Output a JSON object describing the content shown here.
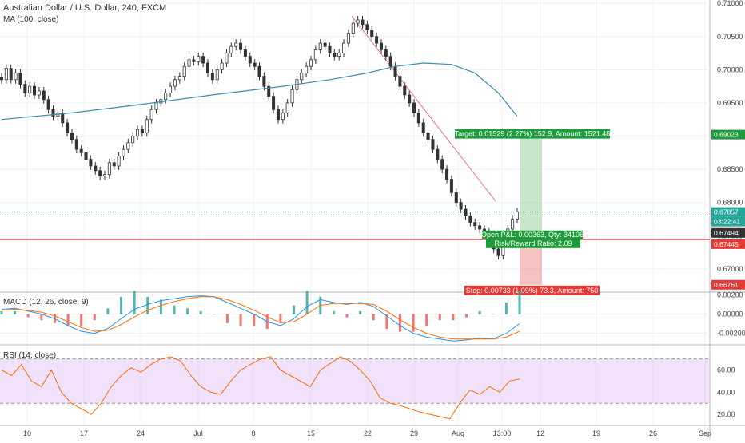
{
  "header": {
    "symbol_title": "Australian Dollar / U.S. Dollar, 240, FXCM",
    "ma_title": "MA (100, close)"
  },
  "indicators": {
    "macd_title": "MACD (12, 26, close, 9)",
    "rsi_title": "RSI (14, close)"
  },
  "colors": {
    "up": "#26a69a",
    "down": "#ef5350",
    "candle_body": "#333333",
    "ma": "#3d8bb0",
    "macd": "#2196f3",
    "signal": "#ff6d00",
    "rsi": "#ff6d00",
    "rsi_band": "#e5c8f7",
    "stop_line": "#d32f2f",
    "target_fill": "#a5d6a7",
    "stop_fill": "#ef9a9a"
  },
  "chart_data": [
    {
      "type": "candlestick",
      "title": "Australian Dollar / U.S. Dollar, 240, FXCM",
      "ylim": [
        0.6665,
        0.7105
      ],
      "y_ticks": [
        "0.71000",
        "0.70500",
        "0.70000",
        "0.69500",
        "0.69000",
        "0.68500",
        "0.68000",
        "0.67500",
        "0.67000"
      ],
      "y_tick_values": [
        0.71,
        0.705,
        0.7,
        0.695,
        0.69,
        0.685,
        0.68,
        0.675,
        0.67
      ],
      "x_ticks": [
        "10",
        "17",
        "24",
        "Jul",
        "8",
        "15",
        "22",
        "29",
        "Aug",
        "13:00",
        "12",
        "19",
        "26",
        "Sep"
      ],
      "close_path": [
        0.6985,
        0.7002,
        0.6985,
        0.6995,
        0.6978,
        0.6965,
        0.6975,
        0.6962,
        0.6968,
        0.6955,
        0.694,
        0.693,
        0.6935,
        0.692,
        0.6905,
        0.6895,
        0.688,
        0.6875,
        0.6865,
        0.6855,
        0.6848,
        0.684,
        0.6842,
        0.686,
        0.6855,
        0.687,
        0.688,
        0.689,
        0.69,
        0.691,
        0.6905,
        0.6925,
        0.694,
        0.695,
        0.6955,
        0.6965,
        0.6975,
        0.6985,
        0.699,
        0.7005,
        0.7015,
        0.7012,
        0.702,
        0.701,
        0.6995,
        0.6985,
        0.7,
        0.701,
        0.7025,
        0.7035,
        0.704,
        0.703,
        0.702,
        0.701,
        0.7005,
        0.699,
        0.6975,
        0.696,
        0.694,
        0.6925,
        0.6935,
        0.695,
        0.697,
        0.6985,
        0.6995,
        0.7005,
        0.7015,
        0.703,
        0.704,
        0.7035,
        0.7025,
        0.702,
        0.7025,
        0.704,
        0.7055,
        0.707,
        0.7075,
        0.7068,
        0.706,
        0.705,
        0.704,
        0.703,
        0.702,
        0.7005,
        0.699,
        0.6975,
        0.6962,
        0.695,
        0.6935,
        0.692,
        0.6905,
        0.6895,
        0.688,
        0.6865,
        0.685,
        0.6835,
        0.6815,
        0.68,
        0.679,
        0.678,
        0.677,
        0.6765,
        0.676,
        0.6755,
        0.6745,
        0.673,
        0.672,
        0.674,
        0.676,
        0.6775,
        0.6786
      ],
      "ma_series": {
        "name": "MA (100, close)",
        "points": [
          [
            0,
            0.6925
          ],
          [
            15,
            0.6935
          ],
          [
            30,
            0.6948
          ],
          [
            45,
            0.6962
          ],
          [
            60,
            0.6975
          ],
          [
            70,
            0.6985
          ],
          [
            78,
            0.6995
          ],
          [
            84,
            0.7005
          ],
          [
            90,
            0.701
          ],
          [
            96,
            0.7008
          ],
          [
            101,
            0.6995
          ],
          [
            106,
            0.6965
          ],
          [
            110,
            0.693
          ]
        ]
      },
      "price_labels": [
        {
          "text": "0.69023",
          "value": 0.69023,
          "color": "#1e9b3a"
        },
        {
          "text": "0.67857",
          "value": 0.67857,
          "color": "#26a69a"
        },
        {
          "text": "03:22:41",
          "value": 0.67857,
          "color": "#26a69a"
        },
        {
          "text": "0.67494",
          "value": 0.67494,
          "color": "#333333"
        },
        {
          "text": "0.67445",
          "value": 0.67445,
          "color": "#e53935"
        },
        {
          "text": "0.66761",
          "value": 0.66761,
          "color": "#e53935"
        }
      ],
      "position": {
        "target_label": "Target: 0.01529 (2.27%) 152.9, Amount: 1521.48",
        "open_pnl_label": "Open P&L: 0.00363, Qty: 34106",
        "rr_label": "Risk/Reward Ratio: 2.09",
        "stop_label": "Stop: 0.00733 (1.09%) 73.3, Amount: 750",
        "entry": 0.67494,
        "target": 0.69023,
        "stop": 0.66761,
        "stop_line": 0.67445
      }
    },
    {
      "type": "line",
      "title": "MACD (12, 26, close, 9)",
      "ylim": [
        -0.0032,
        0.0022
      ],
      "y_ticks": [
        "0.00200",
        "0.00000",
        "-0.00200"
      ],
      "y_tick_values": [
        0.002,
        0.0,
        -0.002
      ],
      "series": [
        {
          "name": "MACD",
          "values": [
            0.0005,
            0.0006,
            0.0003,
            0.0,
            -0.0005,
            -0.0012,
            -0.0018,
            -0.002,
            -0.0015,
            -0.0005,
            0.0005,
            0.001,
            0.0014,
            0.0016,
            0.0018,
            0.0019,
            0.0018,
            0.0012,
            0.0006,
            0.0,
            -0.0008,
            -0.0012,
            -0.0005,
            0.0008,
            0.0015,
            0.0012,
            0.001,
            0.0012,
            0.0008,
            -0.0002,
            -0.0012,
            -0.002,
            -0.0024,
            -0.0026,
            -0.0028,
            -0.0027,
            -0.0025,
            -0.0026,
            -0.002,
            -0.001
          ]
        },
        {
          "name": "Signal",
          "values": [
            0.0004,
            0.0005,
            0.0004,
            0.0002,
            -0.0002,
            -0.0008,
            -0.0014,
            -0.0018,
            -0.0017,
            -0.0011,
            -0.0003,
            0.0004,
            0.0009,
            0.0013,
            0.0016,
            0.0018,
            0.0018,
            0.0015,
            0.001,
            0.0004,
            -0.0003,
            -0.0009,
            -0.0008,
            0.0,
            0.0009,
            0.0011,
            0.0011,
            0.0011,
            0.001,
            0.0003,
            -0.0006,
            -0.0014,
            -0.002,
            -0.0024,
            -0.0026,
            -0.0026,
            -0.0026,
            -0.0026,
            -0.0024,
            -0.0018
          ]
        }
      ]
    },
    {
      "type": "line",
      "title": "RSI (14, close)",
      "ylim": [
        10,
        82
      ],
      "y_ticks": [
        "60.00",
        "40.00",
        "20.00"
      ],
      "y_tick_values": [
        60,
        40,
        20
      ],
      "band": [
        30,
        70
      ],
      "series": [
        {
          "name": "RSI",
          "values": [
            60,
            55,
            65,
            50,
            45,
            60,
            40,
            30,
            25,
            20,
            30,
            45,
            55,
            62,
            58,
            65,
            70,
            72,
            68,
            55,
            45,
            40,
            38,
            50,
            60,
            65,
            70,
            72,
            60,
            55,
            50,
            45,
            60,
            66,
            72,
            68,
            60,
            50,
            35,
            30,
            28,
            25,
            22,
            20,
            18,
            16,
            30,
            42,
            38,
            45,
            40,
            50,
            52
          ]
        }
      ]
    }
  ]
}
